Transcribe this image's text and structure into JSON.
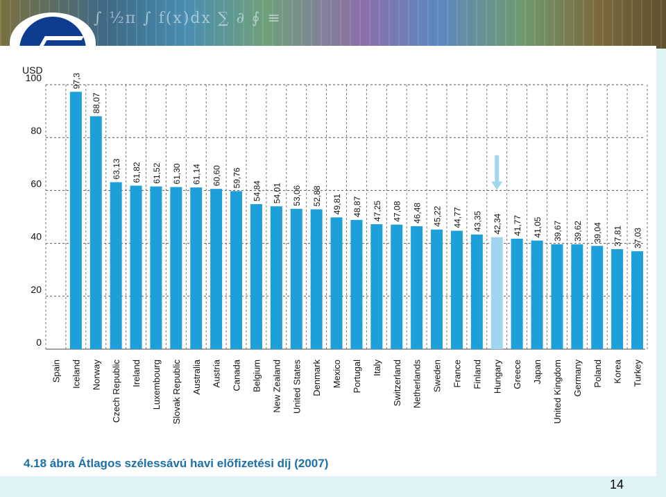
{
  "slide": {
    "caption": "4.18 ábra  Átlagos szélessávú havi előfizetési díj (2007)",
    "page_number": "14"
  },
  "colors": {
    "bar": "#1d9fd9",
    "highlight_bar": "#9fd6ee",
    "highlight_text": "#9fd6ee",
    "caption": "#1c70a6"
  },
  "chart_data": {
    "type": "bar",
    "title": "",
    "xlabel": "",
    "ylabel": "USD",
    "ylim": [
      0,
      100
    ],
    "yticks": [
      0,
      20,
      40,
      60,
      80,
      100
    ],
    "grid": "dashed horizontal",
    "categories": [
      "Spain",
      "Iceland",
      "Norway",
      "Czech Republic",
      "Ireland",
      "Luxembourg",
      "Slovak Republic",
      "Australia",
      "Austria",
      "Canada",
      "Belgium",
      "New Zealand",
      "United States",
      "Denmark",
      "Mexico",
      "Portugal",
      "Italy",
      "Switzerland",
      "Netherlands",
      "Sweden",
      "France",
      "Finland",
      "Hungary",
      "Greece",
      "Japan",
      "United Kingdom",
      "Germany",
      "Poland",
      "Korea",
      "Turkey"
    ],
    "values": [
      null,
      97.3,
      88.07,
      63.13,
      61.82,
      61.52,
      61.3,
      61.14,
      60.6,
      59.76,
      54.84,
      54.01,
      53.06,
      52.88,
      49.81,
      48.87,
      47.25,
      47.08,
      46.48,
      45.22,
      44.77,
      43.35,
      42.34,
      41.77,
      41.05,
      39.67,
      39.62,
      39.04,
      37.81,
      37.03
    ],
    "value_labels": [
      "",
      "97,3",
      "88,07",
      "63,13",
      "61,82",
      "61,52",
      "61,30",
      "61,14",
      "60,60",
      "59,76",
      "54,84",
      "54,01",
      "53,06",
      "52,88",
      "49,81",
      "48,87",
      "47,25",
      "47,08",
      "46,48",
      "45,22",
      "44,77",
      "43,35",
      "42,34",
      "41,77",
      "41,05",
      "39,67",
      "39,62",
      "39,04",
      "37,81",
      "37,03"
    ],
    "highlight": "Hungary"
  }
}
